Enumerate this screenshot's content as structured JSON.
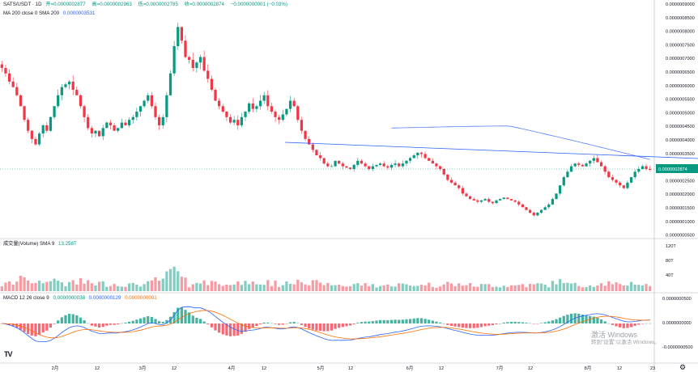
{
  "symbol_header": {
    "title": "SATS/USDT · 1D",
    "open_label": "开",
    "open": "=0.0000002877",
    "high_label": "高",
    "high": "=0.0000002963",
    "low_label": "低",
    "low": "=0.0000002785",
    "close_label": "收",
    "close": "=0.0000002874",
    "change": "−0.0000000001 (−0.03%)"
  },
  "ma_header": {
    "label": "MA 200 close 0 SMA 200",
    "value": "0.0000003531"
  },
  "volume_header": {
    "label": "成交量(Volume) SMA 9",
    "value": "13.258T"
  },
  "macd_header": {
    "label": "MACD 12 26 close 9",
    "hist": "0.0000000038",
    "macd": "0.0000000129",
    "signal": "0.0000000091"
  },
  "price_axis": {
    "ticks": [
      "0.0000009000",
      "0.0000008500",
      "0.0000008000",
      "0.0000007500",
      "0.0000007000",
      "0.0000006500",
      "0.0000006000",
      "0.0000005500",
      "0.0000005000",
      "0.0000004500",
      "0.0000004000",
      "0.0000003500",
      "0.0000003000",
      "0.0000002500",
      "0.0000002000",
      "0.0000001500",
      "0.0000001000",
      "0.0000000500"
    ],
    "current": "0.0000002874"
  },
  "volume_axis": {
    "ticks": [
      "120T",
      "80T",
      "40T"
    ]
  },
  "macd_axis": {
    "ticks": [
      "0.0000000500",
      "0.0000000000",
      "-0.0000000500"
    ]
  },
  "time_axis": {
    "ticks": [
      "2月",
      "12",
      "3月",
      "12",
      "4月",
      "12",
      "5月",
      "12",
      "6月",
      "12",
      "7月",
      "12",
      "8月",
      "12",
      "23"
    ]
  },
  "watermark": {
    "line1": "激活 Windows",
    "line2": "转到\"设置\"以激活 Windows。"
  },
  "logo": {
    "text": "TV"
  },
  "colors": {
    "up": "#089981",
    "down": "#f23645",
    "ma": "#2962ff",
    "macd": "#2962ff",
    "signal": "#ff6d00",
    "trend": "#2962ff"
  },
  "icons": {
    "settings": "gear-icon",
    "logo": "tradingview-logo-icon"
  },
  "chart_data": {
    "type": "candlestick",
    "title": "SATS/USDT · 1D",
    "price_range": [
      5e-08,
      9e-07
    ],
    "closes_e9": [
      660,
      640,
      610,
      590,
      560,
      520,
      470,
      430,
      400,
      380,
      420,
      450,
      430,
      480,
      520,
      560,
      590,
      600,
      610,
      580,
      560,
      520,
      480,
      440,
      420,
      430,
      410,
      440,
      460,
      450,
      430,
      440,
      460,
      450,
      470,
      480,
      500,
      520,
      540,
      560,
      520,
      480,
      450,
      480,
      560,
      640,
      740,
      810,
      760,
      700,
      690,
      660,
      680,
      700,
      650,
      620,
      580,
      540,
      520,
      500,
      480,
      460,
      470,
      450,
      480,
      500,
      530,
      510,
      520,
      540,
      560,
      520,
      500,
      480,
      470,
      490,
      510,
      540,
      520,
      470,
      430,
      400,
      380,
      360,
      340,
      330,
      310,
      300,
      300,
      320,
      310,
      300,
      295,
      290,
      305,
      320,
      310,
      300,
      290,
      300,
      305,
      310,
      300,
      295,
      305,
      310,
      300,
      310,
      320,
      330,
      340,
      350,
      345,
      330,
      320,
      310,
      300,
      290,
      270,
      250,
      240,
      230,
      220,
      200,
      190,
      180,
      175,
      170,
      175,
      180,
      170,
      165,
      175,
      180,
      185,
      180,
      175,
      170,
      160,
      150,
      140,
      130,
      120,
      130,
      140,
      150,
      160,
      180,
      200,
      230,
      260,
      280,
      300,
      310,
      305,
      300,
      310,
      320,
      330,
      315,
      300,
      280,
      260,
      250,
      240,
      230,
      220,
      240,
      260,
      280,
      290,
      300,
      290,
      287
    ]
  }
}
